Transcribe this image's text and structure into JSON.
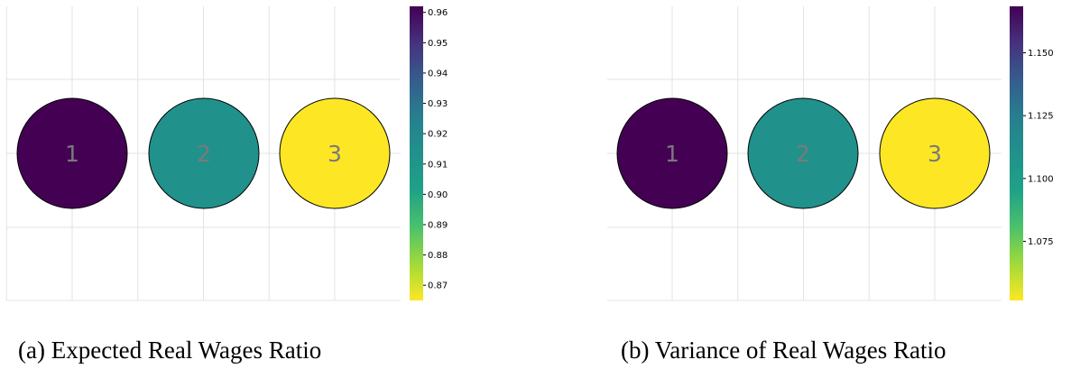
{
  "chart_data": [
    {
      "type": "scatter",
      "caption": "(a) Expected Real Wages Ratio",
      "nodes": [
        {
          "label": "1",
          "color": "#440154"
        },
        {
          "label": "2",
          "color": "#21918c"
        },
        {
          "label": "3",
          "color": "#fde725"
        }
      ],
      "colorbar": {
        "colormap": "viridis_r",
        "range": [
          0.865,
          0.962
        ],
        "ticks": [
          0.87,
          0.88,
          0.89,
          0.9,
          0.91,
          0.92,
          0.93,
          0.94,
          0.95,
          0.96
        ],
        "tick_labels": [
          "0.87",
          "0.88",
          "0.89",
          "0.90",
          "0.91",
          "0.92",
          "0.93",
          "0.94",
          "0.95",
          "0.96"
        ]
      },
      "grid": true
    },
    {
      "type": "scatter",
      "caption": "(b) Variance of Real Wages Ratio",
      "nodes": [
        {
          "label": "1",
          "color": "#440154"
        },
        {
          "label": "2",
          "color": "#21918c"
        },
        {
          "label": "3",
          "color": "#fde725"
        }
      ],
      "colorbar": {
        "colormap": "viridis_r",
        "range": [
          1.0515,
          1.1685
        ],
        "ticks": [
          1.075,
          1.1,
          1.125,
          1.15
        ],
        "tick_labels": [
          "1.075",
          "1.100",
          "1.125",
          "1.150"
        ]
      },
      "grid": true
    }
  ]
}
